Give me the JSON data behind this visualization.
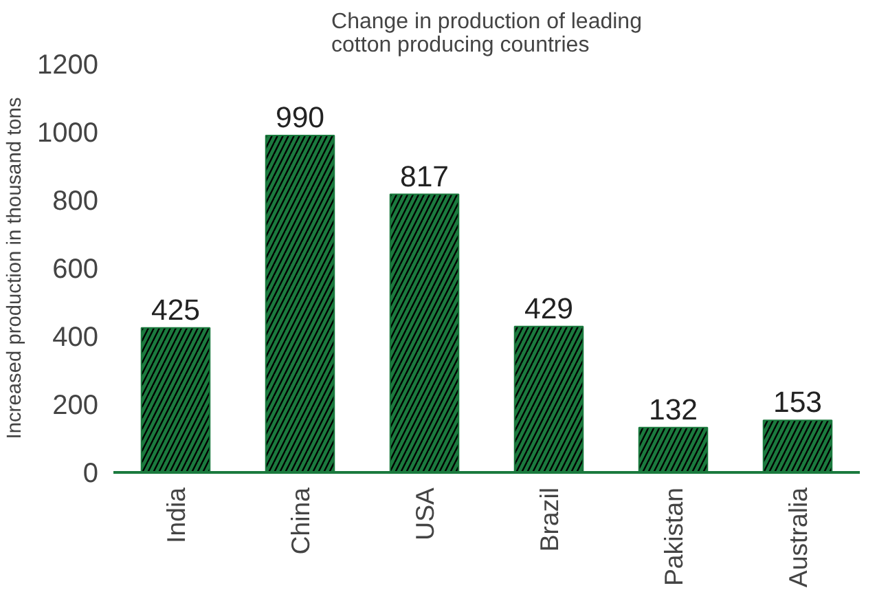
{
  "chart_data": {
    "type": "bar",
    "title": "Change in production of leading cotton producing countries",
    "ylabel": "Increased production in thousand tons",
    "categories": [
      "India",
      "China",
      "USA",
      "Brazil",
      "Pakistan",
      "Australia"
    ],
    "values": [
      425,
      990,
      817,
      429,
      132,
      153
    ],
    "color": "#1b7a3e",
    "ylim": [
      0,
      1200
    ],
    "yticks": [
      0,
      200,
      400,
      600,
      800,
      1000,
      1200
    ],
    "grid": false,
    "data_labels": true
  }
}
